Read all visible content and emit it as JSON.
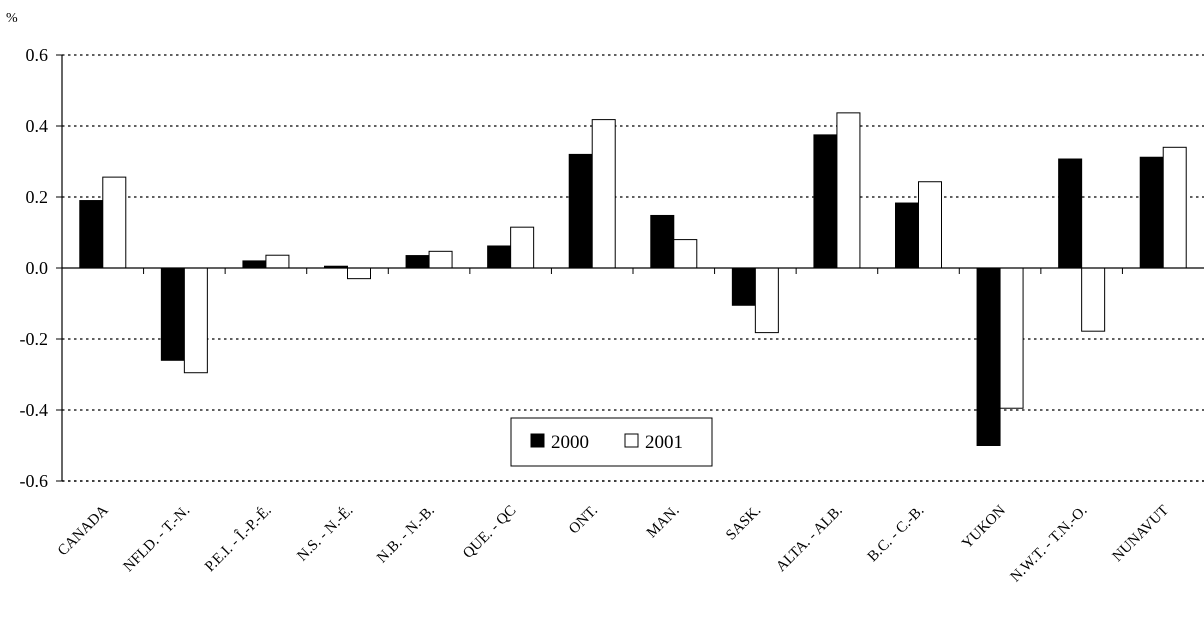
{
  "chart_data": {
    "type": "bar",
    "unit_label": "%",
    "categories": [
      "CANADA",
      "NFLD. - T.-N.",
      "P.E.I. - Î.-P.-É.",
      "N.S. - N.-É.",
      "N.B. - N.-B.",
      "QUE. - QC",
      "ONT.",
      "MAN.",
      "SASK.",
      "ALTA. - ALB.",
      "B.C. - C.-B.",
      "YUKON",
      "N.W.T. - T.N.-O.",
      "NUNAVUT"
    ],
    "series": [
      {
        "name": "2000",
        "color": "#000000",
        "values": [
          0.19,
          -0.26,
          0.02,
          0.005,
          0.035,
          0.062,
          0.32,
          0.148,
          -0.105,
          0.375,
          0.183,
          -0.5,
          0.307,
          0.312
        ]
      },
      {
        "name": "2001",
        "color": "#ffffff",
        "values": [
          0.256,
          -0.295,
          0.036,
          -0.03,
          0.047,
          0.115,
          0.418,
          0.08,
          -0.182,
          0.437,
          0.243,
          -0.395,
          -0.178,
          0.34
        ]
      }
    ],
    "ylim": [
      -0.6,
      0.6
    ],
    "y_ticks": [
      "0.6",
      "0.4",
      "0.2",
      "0.0",
      "-0.2",
      "-0.4",
      "-0.6"
    ],
    "grid": "horizontal-dotted",
    "legend_position": "bottom-center"
  }
}
